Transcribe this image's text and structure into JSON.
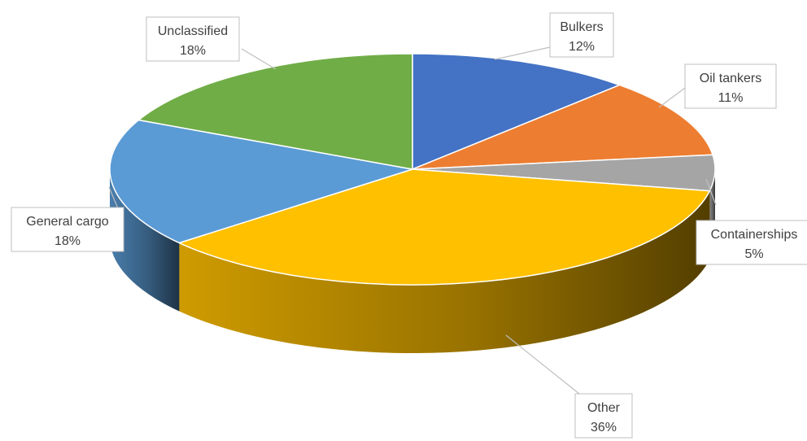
{
  "chart_data": {
    "type": "pie",
    "style": "3d",
    "title": "",
    "legend": "none",
    "slices": [
      {
        "name": "Bulkers",
        "value": 12,
        "label": "12%",
        "color": "#4472C4"
      },
      {
        "name": "Oil tankers",
        "value": 11,
        "label": "11%",
        "color": "#ED7D31"
      },
      {
        "name": "Containerships",
        "value": 5,
        "label": "5%",
        "color": "#A5A5A5"
      },
      {
        "name": "Other",
        "value": 36,
        "label": "36%",
        "color": "#FFC000"
      },
      {
        "name": "General cargo",
        "value": 18,
        "label": "18%",
        "color": "#5B9BD5"
      },
      {
        "name": "Unclassified",
        "value": 18,
        "label": "18%",
        "color": "#70AD47"
      }
    ]
  }
}
